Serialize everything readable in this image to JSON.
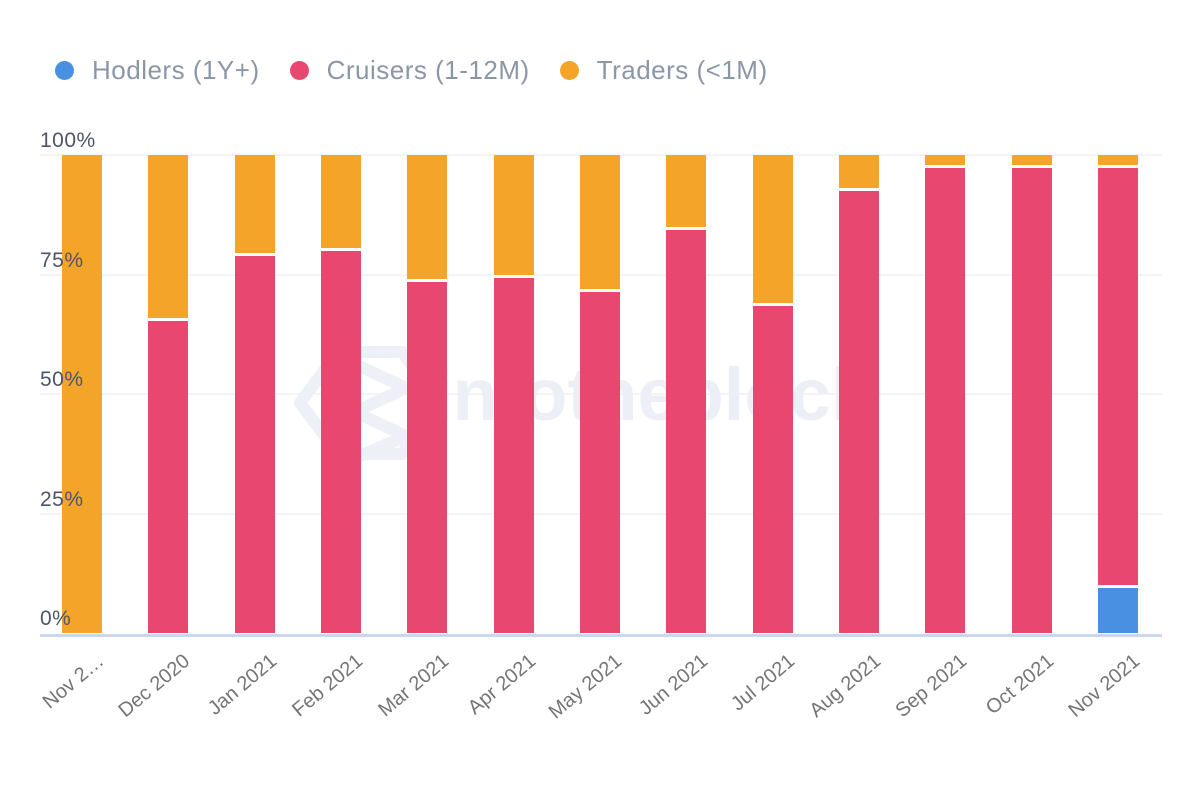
{
  "watermark": {
    "text": "intotheblock"
  },
  "colors": {
    "background": "#FFFFFF",
    "axis_line": "#CBD7EB",
    "gridline": "#F4F4F6",
    "y_label": "#4D5668",
    "x_label": "#757575",
    "legend_text": "#8B97A7",
    "watermark": "#ECEFF5",
    "segment_border": "#FFFFFF"
  },
  "chart_data": {
    "type": "bar",
    "stacked": true,
    "unit": "percent",
    "title": "",
    "xlabel": "",
    "ylabel": "",
    "ylim": [
      0,
      100
    ],
    "grid": true,
    "legend_position": "top-left",
    "categories": [
      "Nov 2…",
      "Dec 2020",
      "Jan 2021",
      "Feb 2021",
      "Mar 2021",
      "Apr 2021",
      "May 2021",
      "Jun 2021",
      "Jul 2021",
      "Aug 2021",
      "Sep 2021",
      "Oct 2021",
      "Nov 2021"
    ],
    "series": [
      {
        "name": "Hodlers (1Y+)",
        "color": "#4A90E2",
        "values": [
          0,
          0,
          0,
          0,
          0,
          0,
          0,
          0,
          0,
          0,
          0,
          0,
          10
        ]
      },
      {
        "name": "Cruisers (1-12M)",
        "color": "#E8476F",
        "values": [
          0,
          66,
          79.5,
          80.5,
          74,
          75,
          72,
          85,
          69,
          93,
          98,
          98,
          88
        ]
      },
      {
        "name": "Traders (<1M)",
        "color": "#F4A428",
        "values": [
          100,
          34,
          20.5,
          19.5,
          26,
          25,
          28,
          15,
          31,
          7,
          2,
          2,
          2
        ]
      }
    ],
    "y_ticks": [
      {
        "label": "100%",
        "value": 100
      },
      {
        "label": "75%",
        "value": 75
      },
      {
        "label": "50%",
        "value": 50
      },
      {
        "label": "25%",
        "value": 25
      },
      {
        "label": "0%",
        "value": 0
      }
    ]
  }
}
